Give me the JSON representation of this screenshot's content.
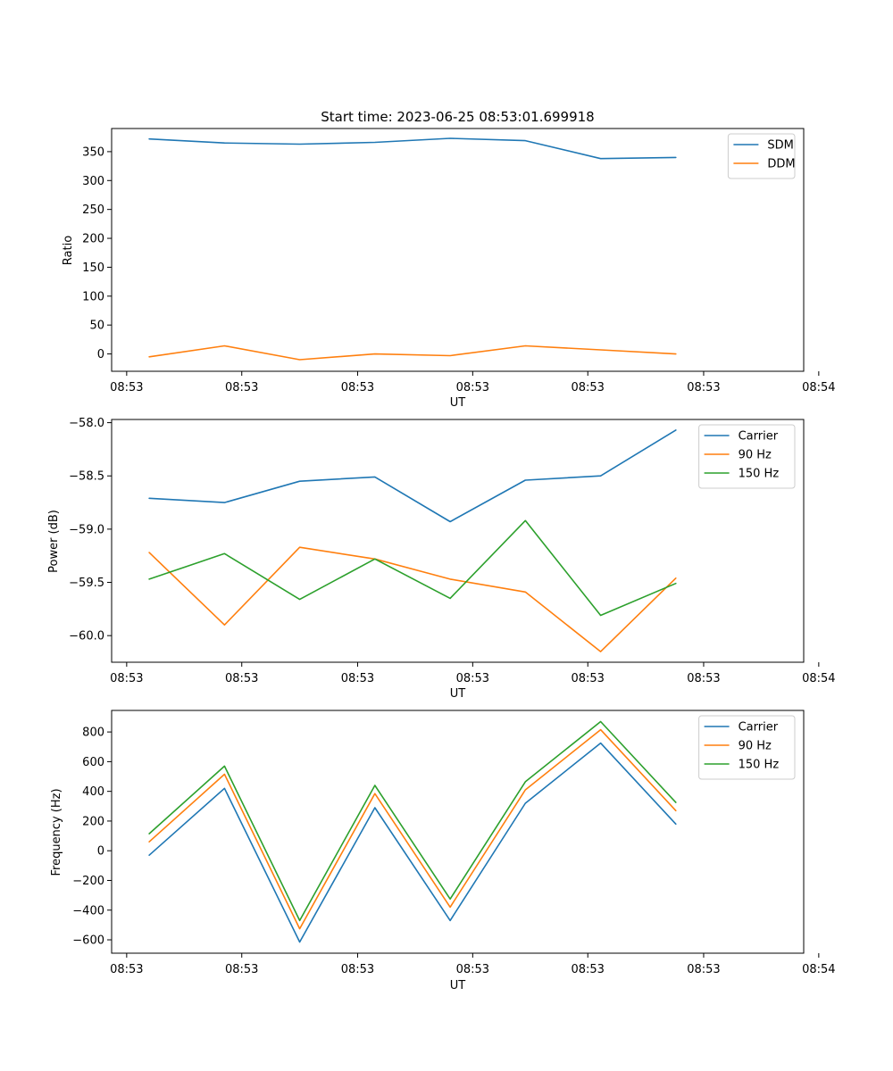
{
  "chart_data": [
    {
      "type": "line",
      "title": "Start time: 2023-06-25 08:53:01.699918",
      "xlabel": "UT",
      "ylabel": "Ratio",
      "x": [
        1,
        2,
        3,
        4,
        5,
        6,
        7,
        8
      ],
      "xlim": [
        0.5,
        9.7
      ],
      "xticks": [
        0.7,
        2.23,
        3.77,
        5.3,
        6.83,
        8.37,
        9.9
      ],
      "xtick_labels": [
        "08:53",
        "08:53",
        "08:53",
        "08:53",
        "08:53",
        "08:53",
        "08:54"
      ],
      "ylim": [
        -30,
        390
      ],
      "yticks": [
        0,
        50,
        100,
        150,
        200,
        250,
        300,
        350
      ],
      "ytick_labels": [
        "0",
        "50",
        "100",
        "150",
        "200",
        "250",
        "300",
        "350"
      ],
      "legend": "top-right",
      "grid": false,
      "series": [
        {
          "name": "SDM",
          "color": "#1f77b4",
          "values": [
            372,
            365,
            363,
            366,
            373,
            369,
            338,
            340
          ]
        },
        {
          "name": "DDM",
          "color": "#ff7f0e",
          "values": [
            -5,
            14,
            -10,
            0,
            -3,
            14,
            7,
            0
          ]
        }
      ]
    },
    {
      "type": "line",
      "xlabel": "UT",
      "ylabel": "Power (dB)",
      "x": [
        1,
        2,
        3,
        4,
        5,
        6,
        7,
        8
      ],
      "xlim": [
        0.5,
        9.7
      ],
      "xticks": [
        0.7,
        2.23,
        3.77,
        5.3,
        6.83,
        8.37,
        9.9
      ],
      "xtick_labels": [
        "08:53",
        "08:53",
        "08:53",
        "08:53",
        "08:53",
        "08:53",
        "08:54"
      ],
      "ylim": [
        -60.25,
        -57.97
      ],
      "yticks": [
        -60.0,
        -59.5,
        -59.0,
        -58.5,
        -58.0
      ],
      "ytick_labels": [
        "−60.0",
        "−59.5",
        "−59.0",
        "−58.5",
        "−58.0"
      ],
      "legend": "top-right",
      "grid": false,
      "series": [
        {
          "name": "Carrier",
          "color": "#1f77b4",
          "values": [
            -58.71,
            -58.75,
            -58.55,
            -58.51,
            -58.93,
            -58.54,
            -58.5,
            -58.07
          ]
        },
        {
          "name": "90 Hz",
          "color": "#ff7f0e",
          "values": [
            -59.22,
            -59.9,
            -59.17,
            -59.28,
            -59.47,
            -59.59,
            -60.15,
            -59.46
          ]
        },
        {
          "name": "150 Hz",
          "color": "#2ca02c",
          "values": [
            -59.47,
            -59.23,
            -59.66,
            -59.28,
            -59.65,
            -58.92,
            -59.81,
            -59.51
          ]
        }
      ]
    },
    {
      "type": "line",
      "xlabel": "UT",
      "ylabel": "Frequency (Hz)",
      "x": [
        1,
        2,
        3,
        4,
        5,
        6,
        7,
        8
      ],
      "xlim": [
        0.5,
        9.7
      ],
      "xticks": [
        0.7,
        2.23,
        3.77,
        5.3,
        6.83,
        8.37,
        9.9
      ],
      "xtick_labels": [
        "08:53",
        "08:53",
        "08:53",
        "08:53",
        "08:53",
        "08:53",
        "08:54"
      ],
      "ylim": [
        -690,
        945
      ],
      "yticks": [
        -600,
        -400,
        -200,
        0,
        200,
        400,
        600,
        800
      ],
      "ytick_labels": [
        "−600",
        "−400",
        "−200",
        "0",
        "200",
        "400",
        "600",
        "800"
      ],
      "legend": "top-right",
      "grid": false,
      "series": [
        {
          "name": "Carrier",
          "color": "#1f77b4",
          "values": [
            -30,
            420,
            -615,
            290,
            -470,
            320,
            725,
            180
          ]
        },
        {
          "name": "90 Hz",
          "color": "#ff7f0e",
          "values": [
            60,
            515,
            -525,
            385,
            -380,
            410,
            815,
            270
          ]
        },
        {
          "name": "150 Hz",
          "color": "#2ca02c",
          "values": [
            115,
            570,
            -470,
            440,
            -325,
            465,
            870,
            325
          ]
        }
      ]
    }
  ]
}
